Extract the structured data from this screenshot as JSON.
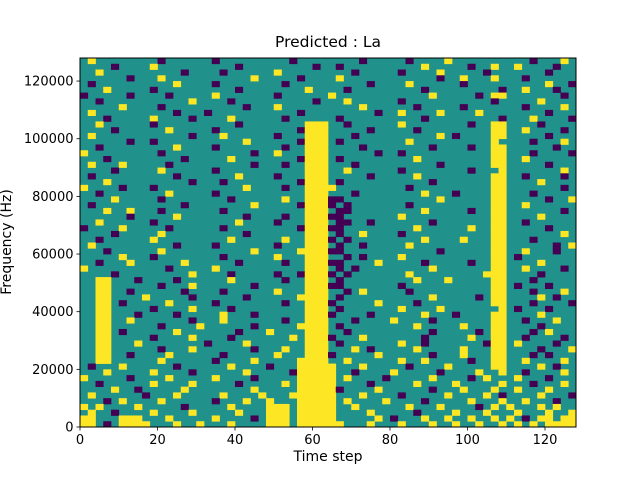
{
  "figure": {
    "title": "Predicted : La",
    "xlabel": "Time step",
    "ylabel": "Frequency (Hz)"
  },
  "chart_data": {
    "type": "heatmap",
    "title": "Predicted : La",
    "xlabel": "Time step",
    "ylabel": "Frequency (Hz)",
    "x_range": [
      0,
      128
    ],
    "y_range": [
      0,
      128000
    ],
    "x_ticks": [
      0,
      20,
      40,
      60,
      80,
      100,
      120
    ],
    "y_ticks": [
      0,
      20000,
      40000,
      60000,
      80000,
      100000,
      120000
    ],
    "grid": false,
    "legend": "none",
    "colors": {
      "low": "#440154",
      "mid": "#21918c",
      "high": "#fde725"
    },
    "grid_encoding": "64 cols x 64 rows; each cell = 2 time steps x 2000 Hz; rows listed top (128000 Hz) to bottom (0 Hz); '.'=mid(teal), 'y'=high(yellow), 'p'=low(purple); each row is 8 chunks of 8 chars joined left(t=0) to right(t=128)",
    "rows": [
      [
        ".y......",
        "..p.....",
        ".p......",
        "...p....",
        "....p...",
        "..p....y",
        "........",
        "..p...y."
      ],
      [
        "....p...",
        ".y......",
        "....p...",
        "......p.",
        ".p......",
        "....y...",
        "..p..y..",
        "y....p.."
      ],
      [
        "..y.....",
        ".....p..",
        "..p.....",
        ".y......",
        "...p....",
        ".p....y.",
        "....p...",
        "....p..."
      ],
      [
        "......p.",
        "..y.....",
        "......y.",
        "....p...",
        ".y......",
        "......p.",
        ".y...y..",
        ".p......"
      ],
      [
        ".p......",
        "....y...",
        ".p......",
        "..p.....",
        ".....p..",
        "..y.....",
        ".p......",
        "....y..p"
      ],
      [
        "...y....",
        ".p......",
        "....p...",
        ".....y..",
        "..p.....",
        "....p...",
        "......p.",
        ".y...p.."
      ],
      [
        "p.....p.",
        "...p....",
        ".y......",
        ".p......",
        "y.......",
        ".....y..",
        "...p.yy.",
        "......p."
      ],
      [
        "..p.....",
        "......y.",
        "...p....",
        "......p.",
        "..y.....",
        ".p......",
        ".....p..",
        "...y...."
      ],
      [
        ".....y..",
        "..p.....",
        ".....p..",
        ".y......",
        "....y...",
        "...p....",
        ".p......",
        ".p....y."
      ],
      [
        ".y......",
        "....p...",
        "p.......",
        "....p...",
        "......p.",
        ".y....y.",
        "...y....",
        "....p..."
      ],
      [
        "...p....",
        ".y....p.",
        "...y....",
        "..p.....",
        ".p......",
        "....p...",
        "......p.",
        "..y....p"
      ],
      [
        "..y.....",
        ".p......",
        "....p...",
        ".....yyy",
        "..p.....",
        ".y......",
        "..p..yy.",
        "...p...."
      ],
      [
        "....p...",
        "...y....",
        ".p......",
        "....pyyy",
        ".....p..",
        "...p....",
        ".....yy.",
        ".y....p."
      ],
      [
        ".y......",
        "......p.",
        "..y.....",
        ".p...yyy",
        "...p....",
        "......y.",
        "p....yy.",
        "....p..."
      ],
      [
        "......p.",
        ".p......",
        ".....y..",
        "....pyyy",
        ".p......",
        "..y.....",
        ".....y..",
        "..p...y."
      ],
      [
        "..p.....",
        "....y...",
        ".p......",
        "..p..yyy",
        "....p...",
        ".....p..",
        "..p..yy.",
        ".....p.."
      ],
      [
        "y.......",
        "..p.....",
        "......p.",
        ".y...yyy",
        "......p.",
        ".p......",
        ".....yy.",
        "..p....p"
      ],
      [
        "...p....",
        ".....p..",
        "...y....",
        "....pyyy",
        ".p......",
        "...y....",
        ".....yy.",
        ".y......"
      ],
      [
        ".y...y..",
        "...p....",
        "......p.",
        "..p..yyy",
        "...p....",
        "......p.",
        ".....yy.",
        "....p..."
      ],
      [
        "....p...",
        "..y.....",
        ".p......",
        ".....yyy",
        "..y.....",
        ".p......",
        "..p...y.",
        "......y."
      ],
      [
        ".p......",
        "....p...",
        "....y...",
        ".p...yyy",
        ".....p..",
        "...y....",
        ".....yy.",
        ".p....p."
      ],
      [
        "...y....",
        "......p.",
        "..p.....",
        "....pyyy",
        ".p......",
        ".....p..",
        ".....yy.",
        "...y...."
      ],
      [
        "y....p..",
        ".p......",
        ".....y..",
        "..p..yyy",
        "y.......",
        "..p.....",
        ".....yy.",
        "......p."
      ],
      [
        "..p.....",
        "...y....",
        ".p......",
        ".....yyy",
        "...p....",
        "....y...",
        "p....yy.",
        "..p....."
      ],
      [
        "....y...",
        "..p.....",
        "...p....",
        "..y..yyy",
        "pp......",
        "......y.",
        ".....yy.",
        "....p..y"
      ],
      [
        ".p......",
        ".....p..",
        "......y.",
        "....pyyy",
        "p.p.....",
        "..p.....",
        ".....yy.",
        ".y......"
      ],
      [
        "...y..y.",
        "..p.....",
        "..p.....",
        ".....yyy",
        ".pp.....",
        "....y...",
        "..p..yy.",
        "......p."
      ],
      [
        "......p.",
        "....y...",
        ".....p..",
        "..p..yyy",
        "pp......",
        ".y......",
        ".....yy.",
        "...y...."
      ],
      [
        "..y.....",
        ".p......",
        "....y...",
        ".p...yyy",
        ".pp..p..",
        ".....p..",
        ".....yy.",
        ".p......"
      ],
      [
        "p....y..",
        "...p....",
        "..p.....",
        "....pyyy",
        "pp......",
        "...y....",
        "..y..yy.",
        "....p..."
      ],
      [
        "....p...",
        "..y.....",
        ".....p..",
        ".....yyy",
        ".p..y...",
        ".p......",
        ".....yy.",
        "......y."
      ],
      [
        "..p.....",
        ".y......",
        "...y....",
        "..y..yyy",
        "p.p.....",
        "....y...",
        ".y...yy.",
        "..p....."
      ],
      [
        ".y......",
        "....p...",
        ".p......",
        ".p...yyy",
        ".p..p...",
        "..y.....",
        ".....yy.",
        ".....p.y"
      ],
      [
        "...p....",
        "..y.....",
        "......y.",
        "....yyyy",
        "pp......",
        "......p.",
        ".....yy.",
        ".y...p.."
      ],
      [
        ".....y..",
        ".p......",
        "..p.....",
        ".y...yyy",
        "..p.p...",
        ".y......",
        ".....yy.",
        "p......."
      ],
      [
        "..p...y.",
        ".....y..",
        "....p...",
        "..p..yyy",
        "pp....y.",
        "....p...",
        "..p..yy.",
        "...y...."
      ],
      [
        "y.......",
        "...p....",
        ".y......",
        ".....yyy",
        ".p.p....",
        ".....y..",
        ".....yy.",
        ".y....p."
      ],
      [
        "....p...",
        "......y.",
        "...p....",
        ".p..pyyy",
        "p.p.....",
        "..y.....",
        "....yyy.",
        "...p...."
      ],
      [
        "..yy...p",
        "....p...",
        "...y....",
        "..p..yyy",
        ".p......",
        "...y...y",
        ".....yy.",
        "..p....."
      ],
      [
        "..yy....",
        "..p...y.",
        "......p.",
        ".....yyy",
        "pp......",
        ".p......",
        ".....yy.",
        "p...p..."
      ],
      [
        "..yy..p.",
        ".....p..",
        "..p.....",
        ".y...yyy",
        "..p.y...",
        "..p.....",
        ".....yy.",
        "..p...y."
      ],
      [
        "..yy....",
        "y.....p.",
        ".....p..",
        "....yyyy",
        ".p......",
        ".....y..",
        "...p.yy.",
        "...y.p.."
      ],
      [
        "..yy.p..",
        "...y....",
        ".p......",
        "..p..yyy",
        "p.....y.",
        "...p....",
        ".....yy.",
        "..p....p"
      ],
      [
        "..yy....",
        ".p....y.",
        "...p....",
        ".....yyy",
        ".p......",
        ".y....y.",
        "......y.",
        "p...p..."
      ],
      [
        "..yy...p",
        "....p...",
        "..y...p.",
        ".....yyy",
        "p....p..",
        "....y...",
        "p....yy.",
        "...y...."
      ],
      [
        "..yy..y.",
        "......p.",
        "..y.....",
        "..p..yyy",
        "...p....",
        "y....p..",
        ".....yy.",
        ".p...y.."
      ],
      [
        "..yy....",
        "..p....y",
        "......p.",
        "....yyyy",
        ".p......",
        "...y....",
        ".y...yy.",
        "...p...."
      ],
      [
        "..yy.p..",
        "....y...",
        "....p...",
        "y....yyy",
        "..p.....",
        ".....p..",
        "...p.yy.",
        "..p.y..."
      ],
      [
        "..yy....",
        ".p....y.",
        "...p....",
        "...y.yyy",
        "p...y...",
        "....p...",
        "..y..yy.",
        ".p....p."
      ],
      [
        "..yy...y",
        "........",
        "p....y..",
        ".....yyy",
        ".p......",
        ".y..p...",
        "....pyy.",
        "y....p.."
      ],
      [
        "..yy....",
        "..p...y.",
        "......p.",
        "..y..yyy",
        "...y.p..",
        "...y....",
        ".y...yy.",
        "...p...y"
      ],
      [
        "..yy..p.",
        "...y....",
        "..p.....",
        ".y...yyy",
        "p.....y.",
        ".....p..",
        ".y...yy.",
        "..p.p..."
      ],
      [
        "..yy....",
        "..y.....",
        ".p....y.",
        "....yyyy",
        "..y.....",
        ".y..y...",
        "..p..yy.",
        ".y....y."
      ],
      [
        ".p...y..",
        "....p...",
        "...y....",
        "p...yyyy",
        "y...y...",
        "..p....y",
        ".....yy.",
        "...y.p.."
      ],
      [
        "...y....",
        ".y....p.",
        ".....y..",
        "...pyyyy",
        "y..p....",
        "y.....p.",
        "...y..y.",
        ".p....y."
      ],
      [
        "y.....p.",
        "...y....",
        ".y....p.",
        "....yyyy",
        "y.y....p",
        ".....y..",
        "..p.y...",
        "y...p..."
      ],
      [
        "..p.....",
        ".y....y.",
        "....p...",
        "..y.yyyy",
        "y....p..",
        "...y....",
        "y.....y.",
        "..p...y."
      ],
      [
        "....y..p",
        ".....y..",
        "......y.",
        "....yyyy",
        "yp....y.",
        ".....p..",
        ".y...y..",
        "y...y..."
      ],
      [
        ".y......",
        "p...y...",
        "..y....y",
        "...yyyyy",
        "y...y...",
        ".p.....y",
        "....y.p.",
        "...y...p"
      ],
      [
        "...p.y..",
        "..y.....",
        ".p...y..",
        "y...yyyy",
        "y.y....y",
        "....p...",
        "..y...y.",
        ".y...p.."
      ],
      [
        "y.y....y",
        ".....p..",
        "...y....",
        "yyy.yyyy",
        "y..y....",
        "..y...y.",
        "...p.y.y",
        "...y.y.."
      ],
      [
        ".y..p...",
        ".y....y.",
        "....y...",
        "yyy.yyyy",
        "y....y..",
        "...p....",
        "y...y...",
        "y...y..y"
      ],
      [
        "yy...yyy",
        "...y....",
        ".y....p.",
        "yyy.yyyy",
        "y.....y.",
        "p...y..y",
        "..y..y.y",
        ".p.yy.yy"
      ],
      [
        "yy.p.yyy",
        "y...y..y",
        "...y....",
        "yyy.yyyy",
        "yy...y..",
        ".y...y..",
        "y..y..y.",
        "y.y.yyyy"
      ]
    ]
  }
}
